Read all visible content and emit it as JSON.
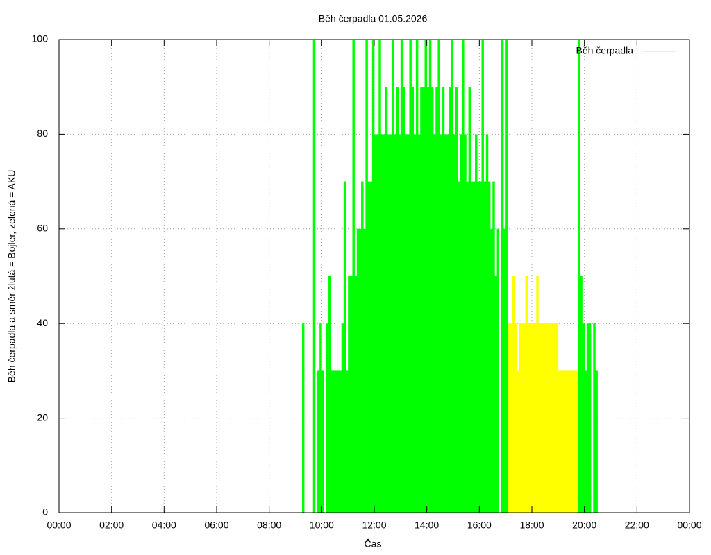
{
  "chart_data": {
    "type": "impulse",
    "title": "Běh čerpadla 01.05.2026",
    "x_label": "Čas",
    "y_label": "Běh čerpadla a směr žlutá = Bojler, zelená = AKU",
    "xlim": [
      0,
      1440
    ],
    "ylim": [
      0,
      100
    ],
    "xticks": [
      {
        "value": 0,
        "label": "00:00"
      },
      {
        "value": 120,
        "label": "02:00"
      },
      {
        "value": 240,
        "label": "04:00"
      },
      {
        "value": 360,
        "label": "06:00"
      },
      {
        "value": 480,
        "label": "08:00"
      },
      {
        "value": 600,
        "label": "10:00"
      },
      {
        "value": 720,
        "label": "12:00"
      },
      {
        "value": 840,
        "label": "14:00"
      },
      {
        "value": 960,
        "label": "16:00"
      },
      {
        "value": 1080,
        "label": "18:00"
      },
      {
        "value": 1200,
        "label": "20:00"
      },
      {
        "value": 1320,
        "label": "22:00"
      },
      {
        "value": 1440,
        "label": "00:00"
      }
    ],
    "yticks": [
      0,
      20,
      40,
      60,
      80,
      100
    ],
    "grid": true,
    "legend": "top-right",
    "x": [
      555,
      560,
      565,
      570,
      575,
      580,
      585,
      590,
      595,
      600,
      605,
      610,
      615,
      620,
      625,
      630,
      635,
      640,
      645,
      650,
      655,
      660,
      665,
      670,
      675,
      680,
      685,
      690,
      695,
      700,
      705,
      710,
      715,
      720,
      725,
      730,
      735,
      740,
      745,
      750,
      755,
      760,
      765,
      770,
      775,
      780,
      785,
      790,
      795,
      800,
      805,
      810,
      815,
      820,
      825,
      830,
      835,
      840,
      845,
      850,
      855,
      860,
      865,
      870,
      875,
      880,
      885,
      890,
      895,
      900,
      905,
      910,
      915,
      920,
      925,
      930,
      935,
      940,
      945,
      950,
      955,
      960,
      965,
      970,
      975,
      980,
      985,
      990,
      995,
      1000,
      1005,
      1010,
      1015,
      1020,
      1025,
      1030,
      1035,
      1040,
      1045,
      1050,
      1055,
      1060,
      1065,
      1070,
      1075,
      1080,
      1085,
      1090,
      1095,
      1100,
      1105,
      1110,
      1115,
      1120,
      1125,
      1130,
      1135,
      1140,
      1145,
      1150,
      1155,
      1160,
      1165,
      1170,
      1175,
      1180,
      1185,
      1190,
      1195,
      1200,
      1205,
      1210,
      1215,
      1220,
      1225
    ],
    "series": [
      {
        "name": "Běh čerpadla",
        "color": "#ffff00",
        "values": [
          40,
          0,
          0,
          0,
          0,
          100,
          0,
          30,
          40,
          30,
          0,
          40,
          50,
          30,
          30,
          30,
          30,
          30,
          40,
          70,
          30,
          50,
          50,
          100,
          50,
          60,
          60,
          70,
          60,
          100,
          70,
          70,
          100,
          80,
          80,
          100,
          80,
          80,
          90,
          80,
          80,
          100,
          80,
          90,
          80,
          100,
          90,
          80,
          80,
          100,
          90,
          80,
          100,
          80,
          90,
          90,
          100,
          90,
          100,
          90,
          80,
          90,
          100,
          80,
          90,
          80,
          80,
          90,
          100,
          80,
          90,
          70,
          80,
          100,
          80,
          70,
          90,
          70,
          70,
          80,
          70,
          70,
          100,
          70,
          80,
          70,
          60,
          70,
          50,
          60,
          0,
          100,
          60,
          100,
          40,
          40,
          50,
          40,
          30,
          40,
          40,
          40,
          50,
          40,
          40,
          40,
          40,
          50,
          40,
          40,
          40,
          40,
          40,
          40,
          40,
          40,
          40,
          30,
          30,
          30,
          30,
          30,
          30,
          30,
          30,
          30,
          100,
          50,
          40,
          30,
          40,
          40,
          0,
          40,
          30
        ],
        "colors": [
          "#00ff00",
          "#00ff00",
          "#00ff00",
          "#00ff00",
          "#00ff00",
          "#00ff00",
          "#00ff00",
          "#00ff00",
          "#00ff00",
          "#00ff00",
          "#00ff00",
          "#00ff00",
          "#00ff00",
          "#00ff00",
          "#00ff00",
          "#00ff00",
          "#00ff00",
          "#00ff00",
          "#00ff00",
          "#00ff00",
          "#00ff00",
          "#00ff00",
          "#00ff00",
          "#00ff00",
          "#00ff00",
          "#00ff00",
          "#00ff00",
          "#00ff00",
          "#00ff00",
          "#00ff00",
          "#00ff00",
          "#00ff00",
          "#00ff00",
          "#00ff00",
          "#00ff00",
          "#00ff00",
          "#00ff00",
          "#00ff00",
          "#00ff00",
          "#00ff00",
          "#00ff00",
          "#00ff00",
          "#00ff00",
          "#00ff00",
          "#00ff00",
          "#00ff00",
          "#00ff00",
          "#00ff00",
          "#00ff00",
          "#00ff00",
          "#00ff00",
          "#00ff00",
          "#00ff00",
          "#00ff00",
          "#00ff00",
          "#00ff00",
          "#00ff00",
          "#00ff00",
          "#00ff00",
          "#00ff00",
          "#00ff00",
          "#00ff00",
          "#00ff00",
          "#00ff00",
          "#00ff00",
          "#00ff00",
          "#00ff00",
          "#00ff00",
          "#00ff00",
          "#00ff00",
          "#00ff00",
          "#00ff00",
          "#00ff00",
          "#00ff00",
          "#00ff00",
          "#00ff00",
          "#00ff00",
          "#00ff00",
          "#00ff00",
          "#00ff00",
          "#00ff00",
          "#00ff00",
          "#00ff00",
          "#00ff00",
          "#00ff00",
          "#00ff00",
          "#00ff00",
          "#00ff00",
          "#00ff00",
          "#00ff00",
          "#00ff00",
          "#00ff00",
          "#00ff00",
          "#00ff00",
          "#ffff00",
          "#ffff00",
          "#ffff00",
          "#ffff00",
          "#ffff00",
          "#ffff00",
          "#ffff00",
          "#ffff00",
          "#ffff00",
          "#ffff00",
          "#ffff00",
          "#ffff00",
          "#ffff00",
          "#ffff00",
          "#ffff00",
          "#ffff00",
          "#ffff00",
          "#ffff00",
          "#ffff00",
          "#ffff00",
          "#ffff00",
          "#ffff00",
          "#ffff00",
          "#ffff00",
          "#ffff00",
          "#ffff00",
          "#ffff00",
          "#ffff00",
          "#ffff00",
          "#ffff00",
          "#ffff00",
          "#ffff00",
          "#00ff00",
          "#00ff00",
          "#00ff00",
          "#00ff00",
          "#00ff00",
          "#00ff00",
          "#00ff00",
          "#00ff00",
          "#00ff00"
        ]
      }
    ]
  }
}
